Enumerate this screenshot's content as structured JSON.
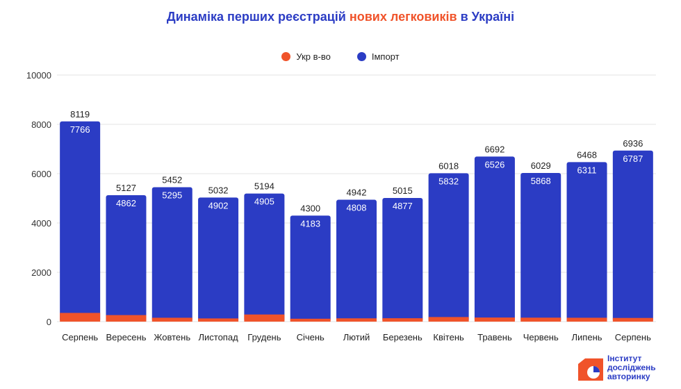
{
  "title": {
    "part1": "Динаміка перших реєстрацій ",
    "part2": "нових легковиків",
    "part3": " в Україні"
  },
  "colors": {
    "title": "#2b3cc4",
    "title_highlight": "#f0532a",
    "local": "#f0532a",
    "import": "#2b3cc4",
    "grid": "#e3e3e3"
  },
  "legend": {
    "local": "Укр в-во",
    "import": "Імпорт"
  },
  "logo": {
    "line1": "Інститут",
    "line2": "досліджень",
    "line3": "авторинку",
    "icon": "pie-chart-icon"
  },
  "chart_data": {
    "type": "bar",
    "stacked": true,
    "categories": [
      "Серпень",
      "Вересень",
      "Жовтень",
      "Листопад",
      "Грудень",
      "Січень",
      "Лютий",
      "Березень",
      "Квітень",
      "Травень",
      "Червень",
      "Липень",
      "Серпень"
    ],
    "series": [
      {
        "name": "Укр в-во",
        "values": [
          353,
          265,
          157,
          130,
          289,
          117,
          134,
          138,
          186,
          166,
          161,
          157,
          149
        ]
      },
      {
        "name": "Імпорт",
        "values": [
          7766,
          4862,
          5295,
          4902,
          4905,
          4183,
          4808,
          4877,
          5832,
          6526,
          5868,
          6311,
          6787
        ]
      }
    ],
    "totals": [
      8119,
      5127,
      5452,
      5032,
      5194,
      4300,
      4942,
      5015,
      6018,
      6692,
      6029,
      6468,
      6936
    ],
    "ylim": [
      0,
      10000
    ],
    "yticks": [
      0,
      2000,
      4000,
      6000,
      8000,
      10000
    ],
    "grid": true,
    "legend_position": "top-center"
  }
}
